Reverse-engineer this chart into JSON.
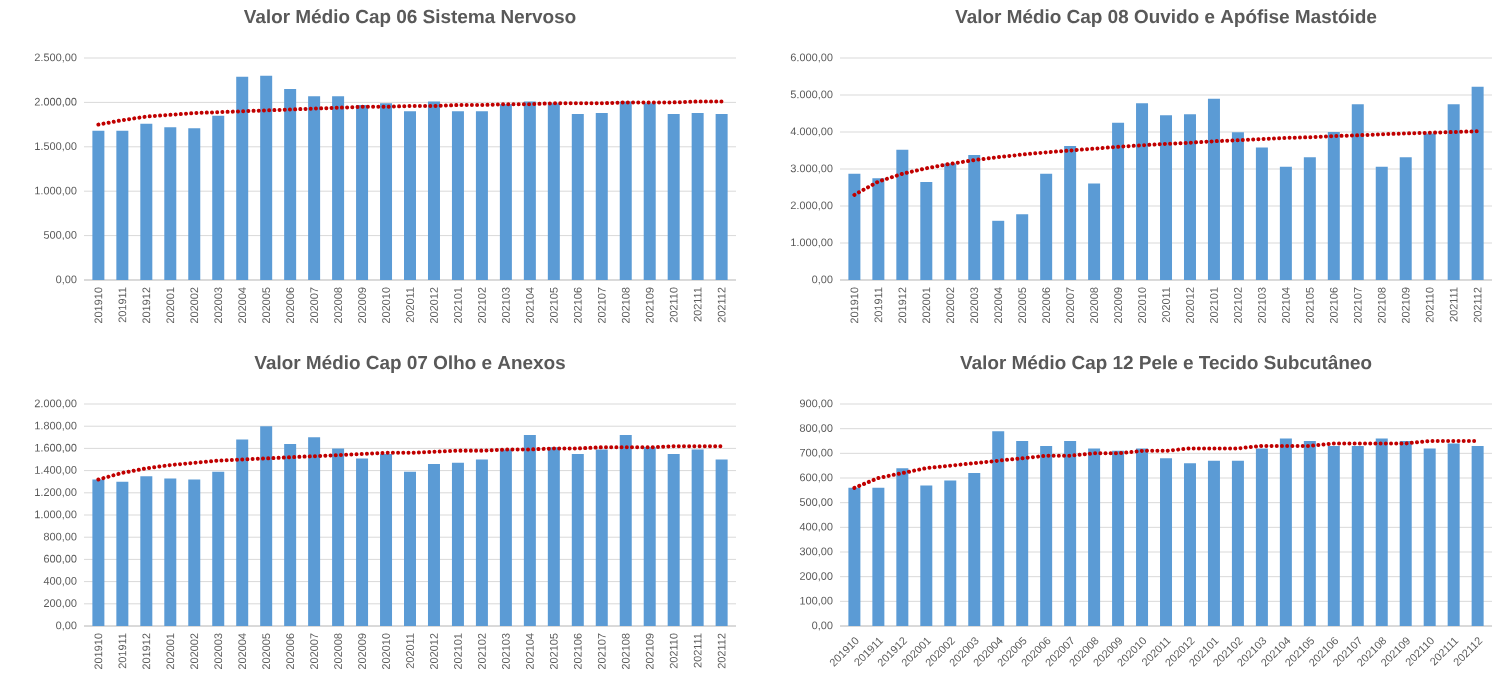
{
  "chart_data": [
    {
      "type": "bar",
      "title": "Valor Médio Cap 06 Sistema Nervoso",
      "categories": [
        "201910",
        "201911",
        "201912",
        "202001",
        "202002",
        "202003",
        "202004",
        "202005",
        "202006",
        "202007",
        "202008",
        "202009",
        "202010",
        "202011",
        "202012",
        "202101",
        "202102",
        "202103",
        "202104",
        "202105",
        "202106",
        "202107",
        "202108",
        "202109",
        "202110",
        "202111",
        "202112"
      ],
      "series": [
        {
          "color": "#5b9bd5",
          "values": [
            1680,
            1680,
            1760,
            1720,
            1710,
            1850,
            2290,
            2300,
            2150,
            2070,
            2070,
            1970,
            1990,
            1900,
            2010,
            1900,
            1900,
            1980,
            2010,
            1990,
            1870,
            1880,
            2010,
            1990,
            1870,
            1880,
            1870
          ]
        },
        {
          "type": "line",
          "color": "#c00000",
          "line_style": "dotted",
          "values": [
            1750,
            1800,
            1840,
            1860,
            1880,
            1890,
            1900,
            1910,
            1920,
            1930,
            1940,
            1950,
            1950,
            1960,
            1960,
            1970,
            1970,
            1980,
            1980,
            1990,
            1990,
            1990,
            2000,
            2000,
            2000,
            2010,
            2010
          ]
        }
      ],
      "ylim": [
        0,
        2500
      ],
      "yticks": [
        {
          "value": 0,
          "label": "0,00"
        },
        {
          "value": 500,
          "label": "500,00"
        },
        {
          "value": 1000,
          "label": "1.000,00"
        },
        {
          "value": 1500,
          "label": "1.500,00"
        },
        {
          "value": 2000,
          "label": "2.000,00"
        },
        {
          "value": 2500,
          "label": "2.500,00"
        }
      ],
      "grid": "y"
    },
    {
      "type": "bar",
      "title": "Valor Médio Cap 08 Ouvido e Apófise Mastóide",
      "categories": [
        "201910",
        "201911",
        "201912",
        "202001",
        "202002",
        "202003",
        "202004",
        "202005",
        "202006",
        "202007",
        "202008",
        "202009",
        "202010",
        "202011",
        "202012",
        "202101",
        "202102",
        "202103",
        "202104",
        "202105",
        "202106",
        "202107",
        "202108",
        "202109",
        "202110",
        "202111",
        "202112"
      ],
      "series": [
        {
          "color": "#5b9bd5",
          "values": [
            2870,
            2750,
            3520,
            2650,
            3150,
            3380,
            1600,
            1780,
            2870,
            3620,
            2610,
            4250,
            4780,
            4450,
            4480,
            4900,
            3990,
            3580,
            3060,
            3320,
            4000,
            4750,
            3060,
            3320,
            3960,
            4750,
            5220
          ]
        },
        {
          "type": "line",
          "color": "#c00000",
          "line_style": "dotted",
          "values": [
            2300,
            2660,
            2870,
            3020,
            3140,
            3240,
            3320,
            3390,
            3450,
            3500,
            3550,
            3600,
            3640,
            3680,
            3710,
            3750,
            3780,
            3810,
            3840,
            3860,
            3890,
            3910,
            3940,
            3960,
            3980,
            4000,
            4020
          ]
        }
      ],
      "ylim": [
        0,
        6000
      ],
      "yticks": [
        {
          "value": 0,
          "label": "0,00"
        },
        {
          "value": 1000,
          "label": "1.000,00"
        },
        {
          "value": 2000,
          "label": "2.000,00"
        },
        {
          "value": 3000,
          "label": "3.000,00"
        },
        {
          "value": 4000,
          "label": "4.000,00"
        },
        {
          "value": 5000,
          "label": "5.000,00"
        },
        {
          "value": 6000,
          "label": "6.000,00"
        }
      ],
      "grid": "y"
    },
    {
      "type": "bar",
      "title": "Valor Médio Cap 07 Olho e Anexos",
      "categories": [
        "201910",
        "201911",
        "201912",
        "202001",
        "202002",
        "202003",
        "202004",
        "202005",
        "202006",
        "202007",
        "202008",
        "202009",
        "202010",
        "202011",
        "202012",
        "202101",
        "202102",
        "202103",
        "202104",
        "202105",
        "202106",
        "202107",
        "202108",
        "202109",
        "202110",
        "202111",
        "202112"
      ],
      "series": [
        {
          "color": "#5b9bd5",
          "values": [
            1320,
            1300,
            1350,
            1330,
            1320,
            1390,
            1680,
            1800,
            1640,
            1700,
            1600,
            1510,
            1550,
            1390,
            1460,
            1470,
            1500,
            1590,
            1720,
            1610,
            1550,
            1590,
            1720,
            1610,
            1550,
            1590,
            1500
          ]
        },
        {
          "type": "line",
          "color": "#c00000",
          "line_style": "dotted",
          "values": [
            1320,
            1380,
            1420,
            1450,
            1470,
            1490,
            1500,
            1510,
            1520,
            1530,
            1540,
            1550,
            1560,
            1560,
            1570,
            1580,
            1580,
            1590,
            1590,
            1600,
            1600,
            1610,
            1610,
            1610,
            1620,
            1620,
            1620
          ]
        }
      ],
      "ylim": [
        0,
        2000
      ],
      "yticks": [
        {
          "value": 0,
          "label": "0,00"
        },
        {
          "value": 200,
          "label": "200,00"
        },
        {
          "value": 400,
          "label": "400,00"
        },
        {
          "value": 600,
          "label": "600,00"
        },
        {
          "value": 800,
          "label": "800,00"
        },
        {
          "value": 1000,
          "label": "1.000,00"
        },
        {
          "value": 1200,
          "label": "1.200,00"
        },
        {
          "value": 1400,
          "label": "1.400,00"
        },
        {
          "value": 1600,
          "label": "1.600,00"
        },
        {
          "value": 1800,
          "label": "1.800,00"
        },
        {
          "value": 2000,
          "label": "2.000,00"
        }
      ],
      "grid": "y"
    },
    {
      "type": "bar",
      "title": "Valor Médio Cap 12 Pele e Tecido Subcutâneo",
      "categories": [
        "201910",
        "201911",
        "201912",
        "202001",
        "202002",
        "202003",
        "202004",
        "202005",
        "202006",
        "202007",
        "202008",
        "202009",
        "202010",
        "202011",
        "202012",
        "202101",
        "202102",
        "202103",
        "202104",
        "202105",
        "202106",
        "202107",
        "202108",
        "202109",
        "202110",
        "202111",
        "202112"
      ],
      "series": [
        {
          "color": "#5b9bd5",
          "values": [
            560,
            560,
            640,
            570,
            590,
            620,
            790,
            750,
            730,
            750,
            720,
            710,
            720,
            680,
            660,
            670,
            670,
            720,
            760,
            750,
            730,
            730,
            760,
            750,
            720,
            740,
            730
          ]
        },
        {
          "type": "line",
          "color": "#c00000",
          "line_style": "dotted",
          "values": [
            560,
            600,
            620,
            640,
            650,
            660,
            670,
            680,
            690,
            690,
            700,
            700,
            710,
            710,
            720,
            720,
            720,
            730,
            730,
            730,
            740,
            740,
            740,
            740,
            750,
            750,
            750
          ]
        }
      ],
      "ylim": [
        0,
        900
      ],
      "yticks": [
        {
          "value": 0,
          "label": "0,00"
        },
        {
          "value": 100,
          "label": "100,00"
        },
        {
          "value": 200,
          "label": "200,00"
        },
        {
          "value": 300,
          "label": "300,00"
        },
        {
          "value": 400,
          "label": "400,00"
        },
        {
          "value": 500,
          "label": "500,00"
        },
        {
          "value": 600,
          "label": "600,00"
        },
        {
          "value": 700,
          "label": "700,00"
        },
        {
          "value": 800,
          "label": "800,00"
        },
        {
          "value": 900,
          "label": "900,00"
        }
      ],
      "grid": "y"
    }
  ]
}
